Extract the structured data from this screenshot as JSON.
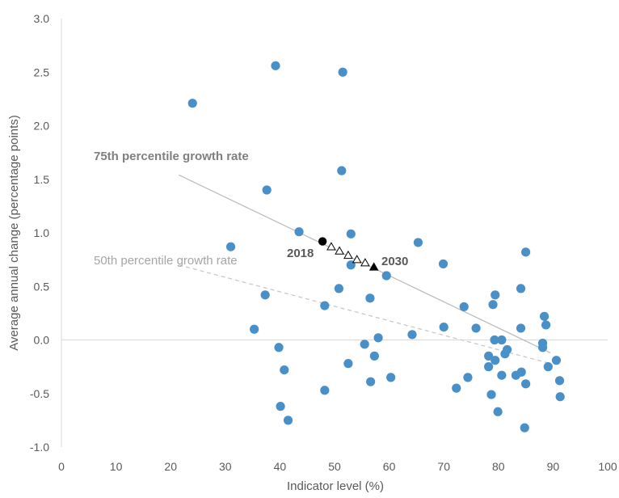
{
  "chart_data": {
    "type": "scatter",
    "title": "",
    "xlabel": "Indicator level (%)",
    "ylabel": "Average annual change (percentage points)",
    "xlim": [
      0,
      100
    ],
    "ylim": [
      -1.0,
      3.0
    ],
    "xticks": [
      "0",
      "10",
      "20",
      "30",
      "40",
      "50",
      "60",
      "70",
      "80",
      "90",
      "100"
    ],
    "yticks": [
      "-1.0",
      "-0.5",
      "0.0",
      "0.5",
      "1.0",
      "1.5",
      "2.0",
      "2.5",
      "3.0"
    ],
    "grid": false,
    "colors": {
      "points": "#4A90C8",
      "line75": "#BDBDBD",
      "line50": "#C8C8C8",
      "trajectory": "#000000"
    },
    "series": [
      {
        "points": [
          [
            24.0,
            2.21
          ],
          [
            39.2,
            2.56
          ],
          [
            51.5,
            2.5
          ],
          [
            51.3,
            1.58
          ],
          [
            37.6,
            1.4
          ],
          [
            31.0,
            0.87
          ],
          [
            43.5,
            1.01
          ],
          [
            53.0,
            0.99
          ],
          [
            65.3,
            0.91
          ],
          [
            53.0,
            0.7
          ],
          [
            59.5,
            0.6
          ],
          [
            69.9,
            0.71
          ],
          [
            85.0,
            0.82
          ],
          [
            50.8,
            0.48
          ],
          [
            37.3,
            0.42
          ],
          [
            48.2,
            0.32
          ],
          [
            56.5,
            0.39
          ],
          [
            35.3,
            0.1
          ],
          [
            39.8,
            -0.07
          ],
          [
            40.8,
            -0.28
          ],
          [
            40.1,
            -0.62
          ],
          [
            41.5,
            -0.75
          ],
          [
            48.2,
            -0.47
          ],
          [
            52.5,
            -0.22
          ],
          [
            55.5,
            -0.04
          ],
          [
            57.3,
            -0.15
          ],
          [
            56.6,
            -0.39
          ],
          [
            58.0,
            0.02
          ],
          [
            60.3,
            -0.35
          ],
          [
            64.2,
            0.05
          ],
          [
            70.0,
            0.12
          ],
          [
            73.7,
            0.31
          ],
          [
            75.9,
            0.11
          ],
          [
            72.3,
            -0.45
          ],
          [
            74.4,
            -0.35
          ],
          [
            79.0,
            0.33
          ],
          [
            79.4,
            0.42
          ],
          [
            84.1,
            0.48
          ],
          [
            79.3,
            0.0
          ],
          [
            80.6,
            0.0
          ],
          [
            78.2,
            -0.15
          ],
          [
            79.4,
            -0.19
          ],
          [
            81.2,
            -0.13
          ],
          [
            81.6,
            -0.09
          ],
          [
            78.2,
            -0.25
          ],
          [
            80.6,
            -0.33
          ],
          [
            83.2,
            -0.33
          ],
          [
            84.2,
            -0.3
          ],
          [
            78.7,
            -0.51
          ],
          [
            79.9,
            -0.67
          ],
          [
            85.0,
            -0.41
          ],
          [
            84.8,
            -0.82
          ],
          [
            84.1,
            0.11
          ],
          [
            88.4,
            0.22
          ],
          [
            88.7,
            0.14
          ],
          [
            88.1,
            -0.03
          ],
          [
            88.1,
            -0.07
          ],
          [
            89.1,
            -0.25
          ],
          [
            90.6,
            -0.19
          ],
          [
            91.2,
            -0.38
          ],
          [
            91.3,
            -0.53
          ]
        ]
      }
    ],
    "lines": [
      {
        "name": "75th percentile growth rate",
        "style": "solid",
        "from": [
          21.5,
          1.54
        ],
        "to": [
          89.5,
          -0.12
        ]
      },
      {
        "name": "50th percentile growth rate",
        "style": "dashed",
        "from": [
          21.5,
          0.7
        ],
        "to": [
          89.5,
          -0.22
        ]
      }
    ],
    "trajectory": {
      "start_label": "2018",
      "end_label": "2030",
      "start": [
        47.8,
        0.92
      ],
      "triangles": [
        [
          49.4,
          0.87
        ],
        [
          50.9,
          0.83
        ],
        [
          52.5,
          0.79
        ],
        [
          54.1,
          0.75
        ],
        [
          55.6,
          0.72
        ]
      ],
      "end": [
        57.2,
        0.68
      ]
    }
  }
}
